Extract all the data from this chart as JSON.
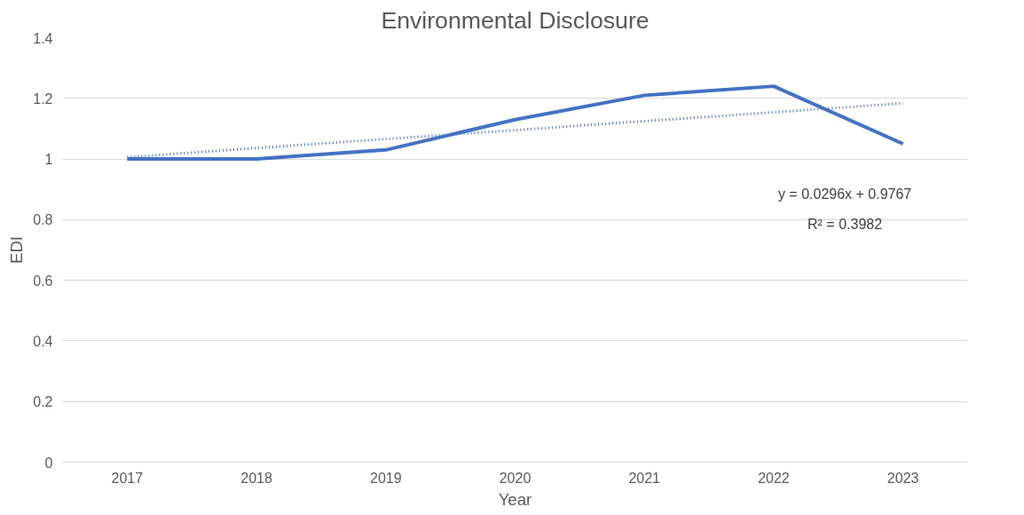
{
  "chart_data": {
    "type": "line",
    "title": "Environmental Disclosure",
    "xlabel": "Year",
    "ylabel": "EDI",
    "categories": [
      "2017",
      "2018",
      "2019",
      "2020",
      "2021",
      "2022",
      "2023"
    ],
    "series": [
      {
        "color": "#4472c4",
        "values": [
          1.0,
          1.0,
          1.03,
          1.13,
          1.21,
          1.24,
          1.05
        ],
        "line_style": "solid"
      },
      {
        "type": "line",
        "color": "#4472c4",
        "line_style": "dotted",
        "values": [
          1.006,
          1.036,
          1.066,
          1.095,
          1.125,
          1.154,
          1.184
        ]
      }
    ],
    "annotations": [
      "y = 0.0296x + 0.9767",
      "R² = 0.3982"
    ],
    "ylim": [
      0,
      1.4
    ],
    "yticks": [
      0,
      0.2,
      0.4,
      0.6,
      0.8,
      1,
      1.2,
      1.4
    ],
    "grid": "y"
  }
}
